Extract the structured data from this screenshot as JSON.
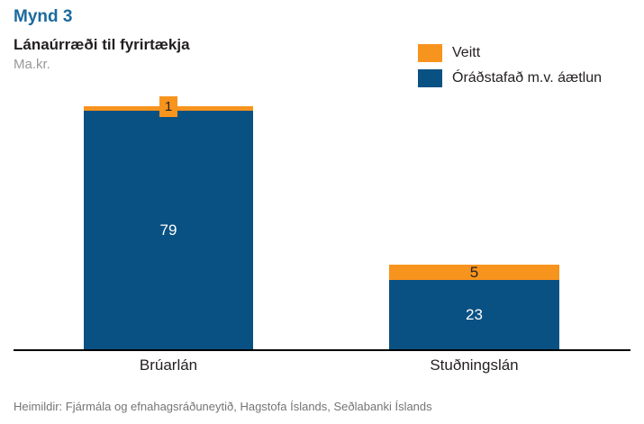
{
  "header": {
    "figure_label": "Mynd 3",
    "title": "Lánaúrræði til fyrirtækja",
    "unit": "Ma.kr."
  },
  "legend": {
    "items": [
      {
        "label": "Veitt",
        "color": "orange"
      },
      {
        "label": "Óráðstafað m.v. áætlun",
        "color": "blue"
      }
    ]
  },
  "colors": {
    "orange": "#F7941E",
    "blue": "#0A5183",
    "figure_label_blue": "#1B6A9E",
    "unit_gray": "#98999B",
    "source_gray": "#757578",
    "text_dark": "#231F20",
    "value_label_on_blue": "#FFFFFF",
    "value_label_on_orange": "#231F20",
    "axis_black": "#000000"
  },
  "chart_data": {
    "type": "bar",
    "stacked": true,
    "categories": [
      "Brúarlán",
      "Stuðningslán"
    ],
    "series": [
      {
        "name": "Óráðstafað m.v. áætlun",
        "color": "blue",
        "values": [
          79,
          23
        ]
      },
      {
        "name": "Veitt",
        "color": "orange",
        "values": [
          1,
          5
        ]
      }
    ],
    "totals": [
      80,
      28
    ],
    "title": "Lánaúrræði til fyrirtækja",
    "xlabel": "",
    "ylabel": "Ma.kr.",
    "ylim": [
      0,
      83
    ],
    "grid": false,
    "y_axis_visible": false,
    "data_labels": true,
    "legend_position": "top-right"
  },
  "footer": {
    "source": "Heimildir: Fjármála og efnahagsráðuneytið, Hagstofa Íslands, Seðlabanki Íslands"
  }
}
